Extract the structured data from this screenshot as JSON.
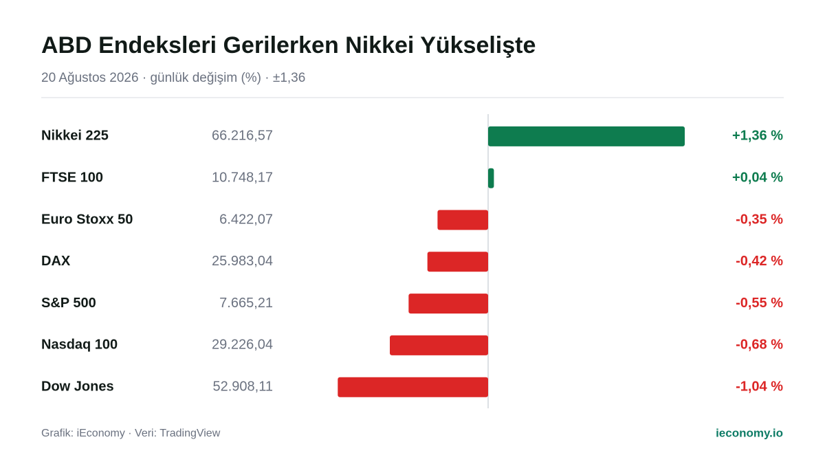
{
  "chart_data": {
    "type": "bar",
    "orientation": "horizontal",
    "title": "ABD Endeksleri Gerilerken Nikkei Yükselişte",
    "subtitle": "20 Ağustos 2026 · günlük değişim (%) · ±1,36",
    "categories": [
      "Nikkei 225",
      "FTSE 100",
      "Euro Stoxx 50",
      "DAX",
      "S&P 500",
      "Nasdaq 100",
      "Dow Jones"
    ],
    "prices": [
      "66.216,57",
      "10.748,17",
      "6.422,07",
      "25.983,04",
      "7.665,21",
      "29.226,04",
      "52.908,11"
    ],
    "values": [
      1.36,
      0.04,
      -0.35,
      -0.42,
      -0.55,
      -0.68,
      -1.04
    ],
    "value_labels": [
      "+1,36 %",
      "+0,04 %",
      "-0,35 %",
      "-0,42 %",
      "-0,55 %",
      "-0,68 %",
      "-1,04 %"
    ],
    "colors": [
      "#0e7c4f",
      "#0e7c4f",
      "#dc2626",
      "#dc2626",
      "#dc2626",
      "#dc2626",
      "#dc2626"
    ],
    "xlim": [
      -1.36,
      1.36
    ],
    "footer": "Grafik: iEconomy · Veri: TradingView",
    "brand": "ieconomy.io"
  }
}
